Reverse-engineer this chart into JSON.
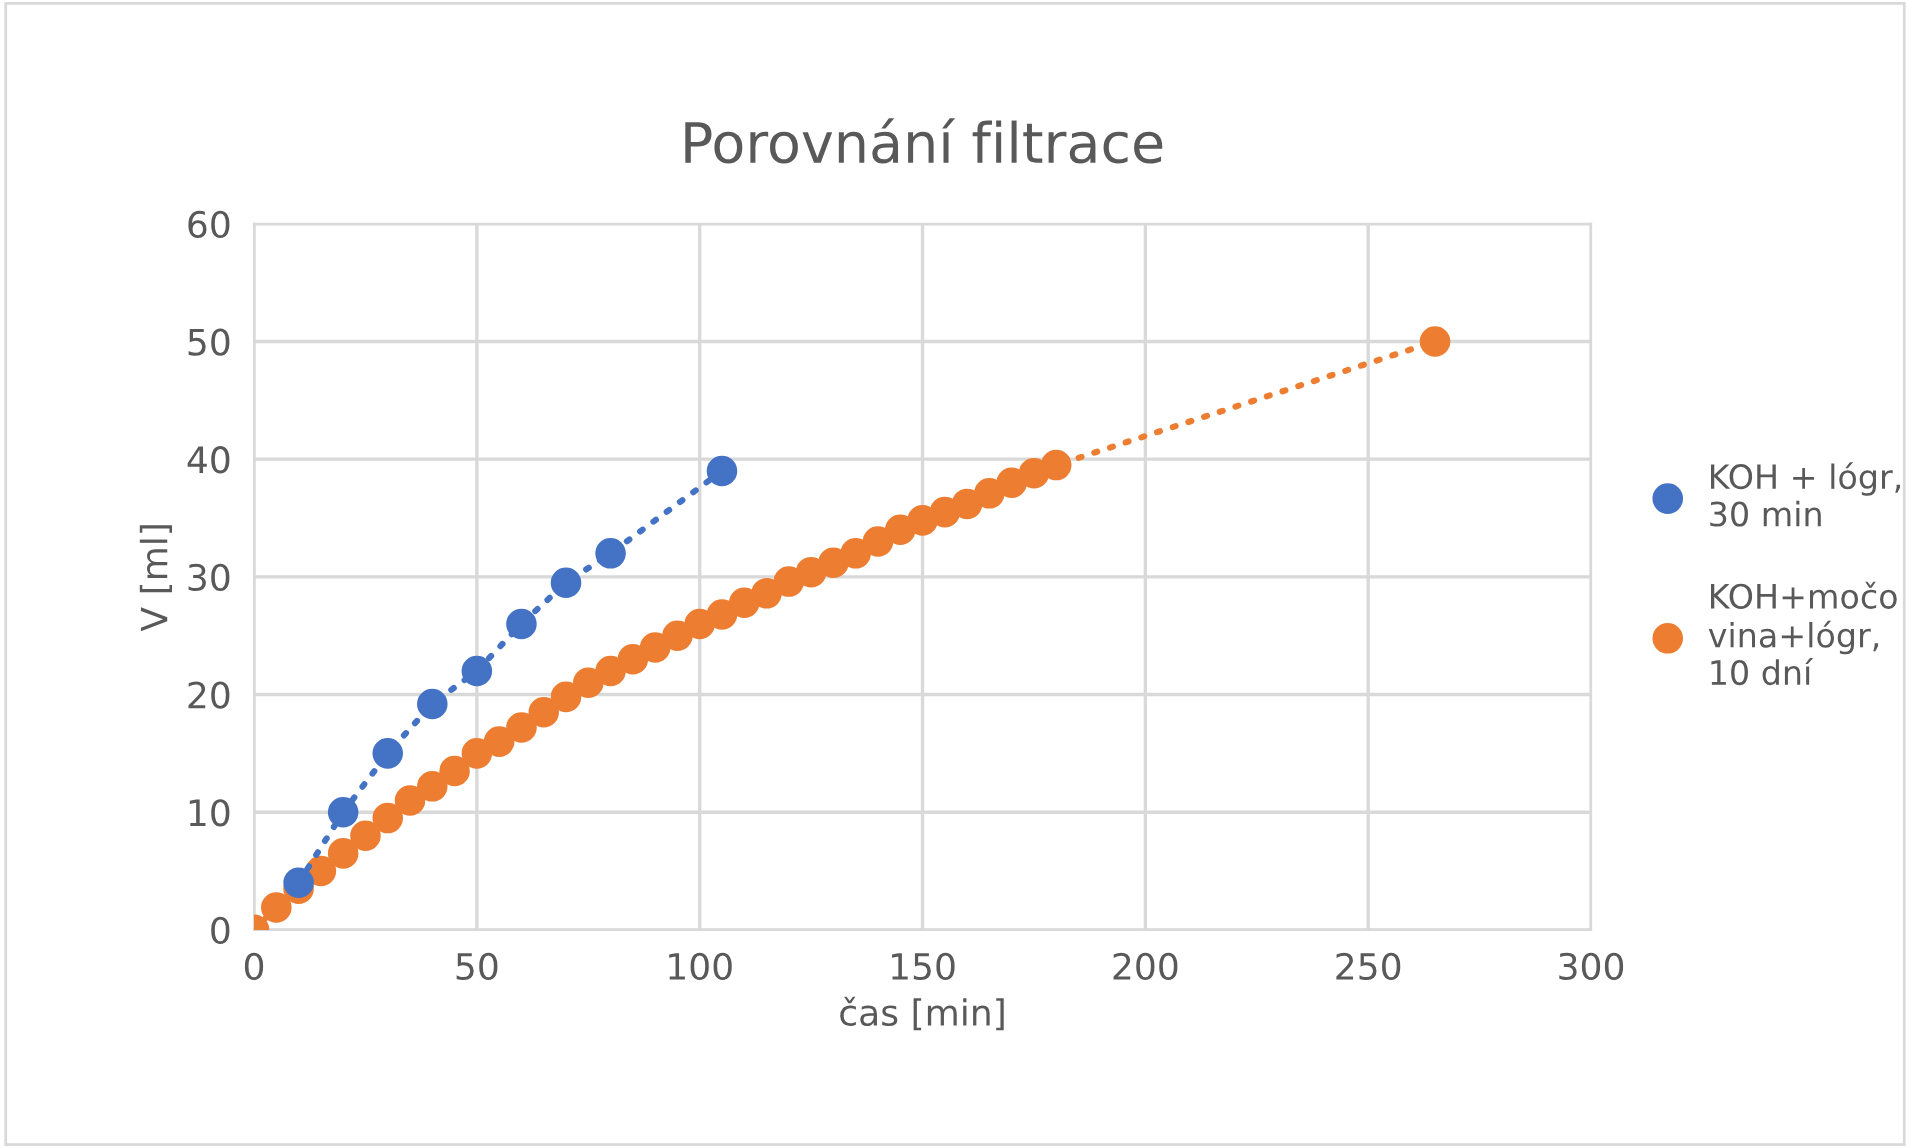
{
  "chart_data": {
    "type": "line",
    "title": "Porovnání filtrace",
    "xlabel": "čas [min]",
    "ylabel": "V [ml]",
    "series": [
      {
        "name": "KOH + lógr, 30 min",
        "color": "#4472c4",
        "x": [
          10,
          20,
          30,
          40,
          50,
          60,
          70,
          80,
          105
        ],
        "values": [
          4,
          10,
          15,
          19.2,
          22,
          26,
          29.5,
          32,
          39
        ]
      },
      {
        "name": "KOH+močo vina+lógr, 10 dní",
        "color": "#ed7d31",
        "x": [
          0,
          5,
          10,
          15,
          20,
          25,
          30,
          35,
          40,
          45,
          50,
          55,
          60,
          65,
          70,
          75,
          80,
          85,
          90,
          95,
          100,
          105,
          110,
          115,
          120,
          125,
          130,
          135,
          140,
          145,
          150,
          155,
          160,
          165,
          170,
          175,
          180,
          265
        ],
        "values": [
          0,
          1.9,
          3.5,
          5,
          6.5,
          8,
          9.5,
          11,
          12.2,
          13.5,
          15,
          16,
          17.2,
          18.5,
          19.8,
          21,
          22,
          23,
          24,
          25,
          26,
          26.8,
          27.8,
          28.6,
          29.6,
          30.4,
          31.2,
          32,
          33,
          34,
          34.8,
          35.5,
          36.2,
          37.1,
          38,
          38.8,
          39.5,
          50
        ]
      }
    ],
    "xlim": [
      0,
      300
    ],
    "xticks": [
      0,
      50,
      100,
      150,
      200,
      250,
      300
    ],
    "ylim": [
      0,
      60
    ],
    "yticks": [
      0,
      10,
      20,
      30,
      40,
      50,
      60
    ],
    "grid": true,
    "legend": "right",
    "marker": "circle",
    "line_style": "dotted"
  }
}
